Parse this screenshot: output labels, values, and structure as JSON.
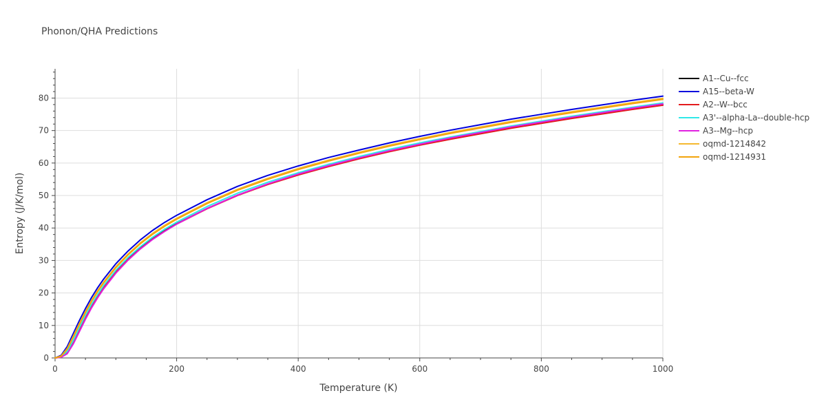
{
  "chart_data": {
    "type": "line",
    "title": "Phonon/QHA Predictions",
    "xlabel": "Temperature (K)",
    "ylabel": "Entropy (J/K/mol)",
    "xlim": [
      0,
      1000
    ],
    "ylim": [
      0,
      89
    ],
    "x_ticks": [
      0,
      200,
      400,
      600,
      800,
      1000
    ],
    "y_ticks": [
      0,
      10,
      20,
      30,
      40,
      50,
      60,
      70,
      80
    ],
    "grid": true,
    "legend_position": "right",
    "x": [
      0,
      10,
      20,
      30,
      40,
      50,
      60,
      70,
      80,
      100,
      120,
      140,
      160,
      180,
      200,
      250,
      300,
      350,
      400,
      450,
      500,
      550,
      600,
      650,
      700,
      750,
      800,
      850,
      900,
      950,
      1000
    ],
    "series": [
      {
        "name": "A1--Cu--fcc",
        "color": "#000000",
        "values": [
          0,
          0.3,
          1.8,
          5.0,
          8.8,
          12.6,
          16.0,
          19.0,
          21.8,
          26.5,
          30.4,
          33.7,
          36.6,
          39.1,
          41.3,
          46.0,
          50.1,
          53.5,
          56.4,
          59.0,
          61.4,
          63.6,
          65.6,
          67.4,
          69.1,
          70.8,
          72.3,
          73.8,
          75.2,
          76.6,
          77.9
        ]
      },
      {
        "name": "A15--beta-W",
        "color": "#0000dd",
        "values": [
          0,
          0.8,
          3.5,
          7.5,
          11.5,
          15.2,
          18.6,
          21.6,
          24.3,
          29.0,
          32.9,
          36.3,
          39.2,
          41.7,
          43.9,
          48.7,
          52.8,
          56.2,
          59.1,
          61.7,
          64.0,
          66.2,
          68.2,
          70.1,
          71.8,
          73.5,
          75.0,
          76.5,
          77.9,
          79.3,
          80.6
        ]
      },
      {
        "name": "A2--W--bcc",
        "color": "#e31a1c",
        "values": [
          0,
          0.3,
          1.7,
          4.9,
          8.7,
          12.5,
          15.9,
          18.9,
          21.7,
          26.4,
          30.3,
          33.6,
          36.5,
          39.0,
          41.2,
          45.9,
          50.0,
          53.4,
          56.3,
          58.9,
          61.3,
          63.5,
          65.5,
          67.3,
          69.0,
          70.7,
          72.2,
          73.7,
          75.1,
          76.5,
          77.8
        ]
      },
      {
        "name": "A3'--alpha-La--double-hcp",
        "color": "#2ee8e8",
        "values": [
          0,
          0.4,
          2.0,
          5.4,
          9.3,
          13.1,
          16.5,
          19.5,
          22.3,
          27.0,
          30.9,
          34.2,
          37.1,
          39.6,
          41.8,
          46.6,
          50.7,
          54.1,
          57.0,
          59.6,
          62.0,
          64.2,
          66.2,
          68.0,
          69.7,
          71.4,
          72.9,
          74.4,
          75.8,
          77.2,
          78.5
        ]
      },
      {
        "name": "A3--Mg--hcp",
        "color": "#e020e0",
        "values": [
          0,
          0.2,
          1.3,
          4.3,
          8.1,
          11.9,
          15.4,
          18.5,
          21.3,
          26.1,
          30.1,
          33.5,
          36.4,
          38.9,
          41.2,
          46.0,
          50.1,
          53.6,
          56.6,
          59.2,
          61.6,
          63.8,
          65.8,
          67.7,
          69.4,
          71.1,
          72.6,
          74.1,
          75.5,
          76.9,
          78.2
        ]
      },
      {
        "name": "oqmd-1214842",
        "color": "#f5b82e",
        "values": [
          0,
          0.6,
          2.9,
          6.7,
          10.6,
          14.3,
          17.7,
          20.7,
          23.4,
          28.1,
          32.0,
          35.4,
          38.3,
          40.8,
          43.0,
          47.8,
          51.9,
          55.3,
          58.3,
          60.9,
          63.3,
          65.5,
          67.5,
          69.4,
          71.1,
          72.8,
          74.3,
          75.8,
          77.2,
          78.6,
          79.9
        ]
      },
      {
        "name": "oqmd-1214931",
        "color": "#f2a40a",
        "values": [
          0,
          0.5,
          2.7,
          6.4,
          10.3,
          14.0,
          17.4,
          20.4,
          23.1,
          27.8,
          31.7,
          35.1,
          38.0,
          40.5,
          42.7,
          47.5,
          51.6,
          55.0,
          58.0,
          60.6,
          63.0,
          65.2,
          67.2,
          69.1,
          70.8,
          72.5,
          74.0,
          75.5,
          76.9,
          78.3,
          79.6
        ]
      }
    ]
  }
}
